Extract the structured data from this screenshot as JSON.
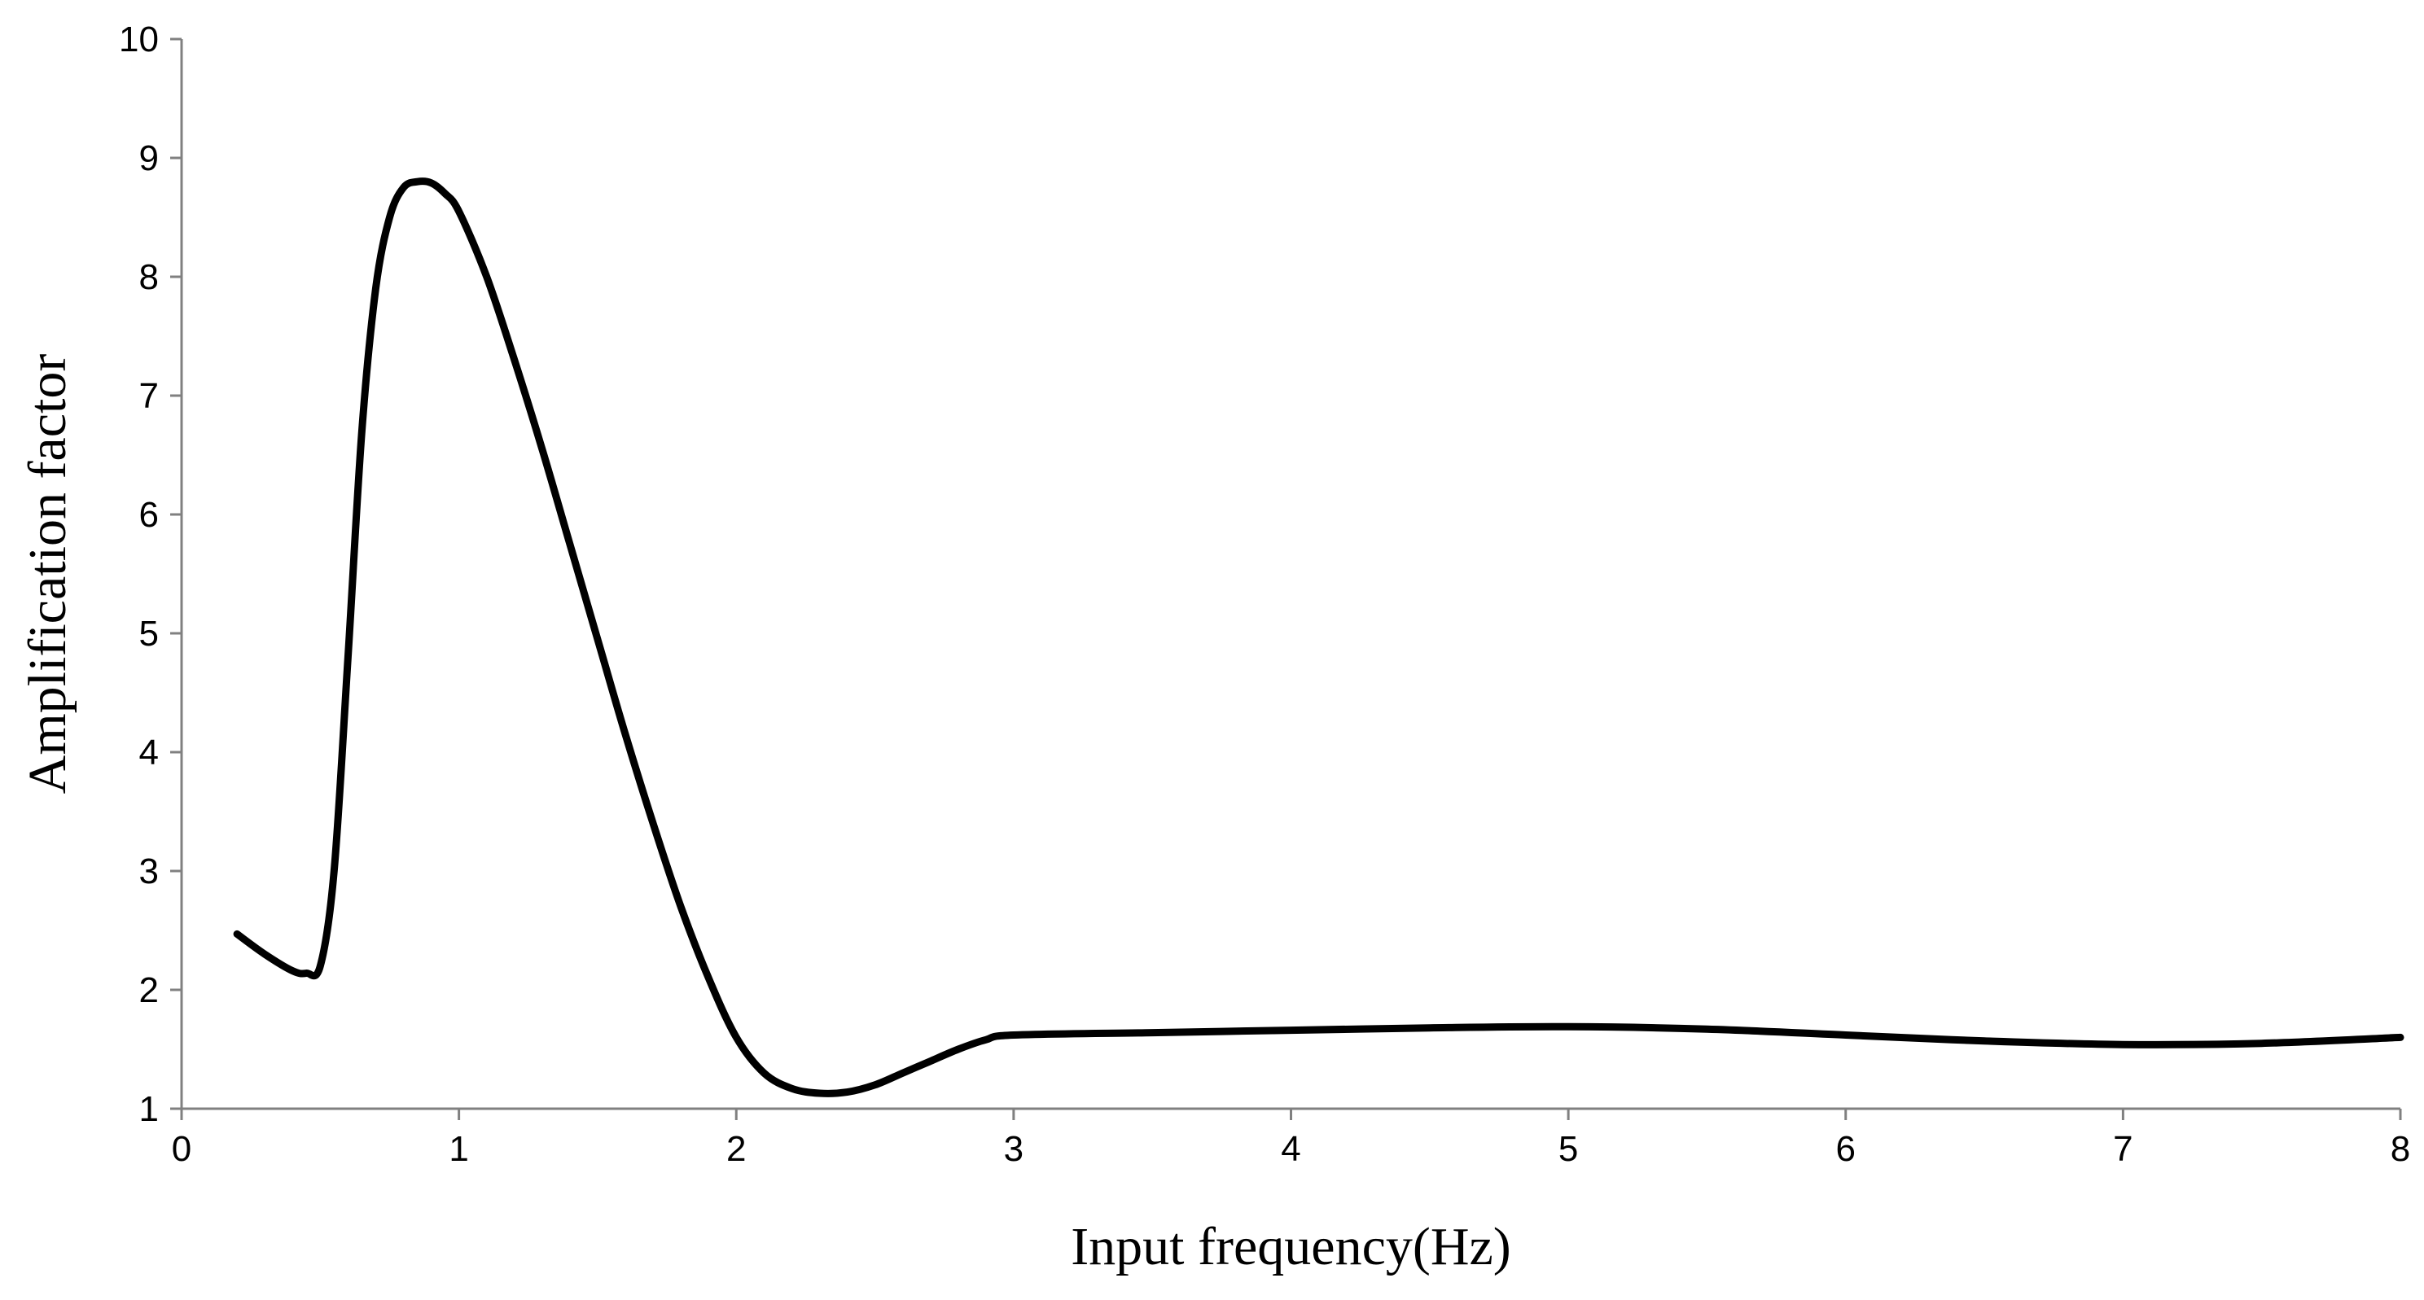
{
  "chart_data": {
    "type": "line",
    "title": "",
    "xlabel": "Input frequency(Hz)",
    "ylabel": "Amplification factor",
    "xlim": [
      0,
      8
    ],
    "ylim": [
      1,
      10
    ],
    "xticks": [
      "0",
      "1",
      "2",
      "3",
      "4",
      "5",
      "6",
      "7",
      "8"
    ],
    "yticks": [
      "1",
      "2",
      "3",
      "4",
      "5",
      "6",
      "7",
      "8",
      "9",
      "10"
    ],
    "grid": false,
    "legend": "none",
    "series": [
      {
        "color": "#000000",
        "x": [
          0.2,
          0.3,
          0.4,
          0.45,
          0.5,
          0.55,
          0.6,
          0.65,
          0.7,
          0.75,
          0.8,
          0.85,
          0.9,
          0.95,
          1.0,
          1.1,
          1.2,
          1.3,
          1.4,
          1.5,
          1.6,
          1.7,
          1.8,
          1.9,
          2.0,
          2.1,
          2.2,
          2.3,
          2.4,
          2.5,
          2.6,
          2.7,
          2.8,
          2.9,
          3.0,
          3.5,
          4.0,
          4.5,
          5.0,
          5.5,
          6.0,
          6.5,
          7.0,
          7.5,
          8.0
        ],
        "values": [
          2.47,
          2.3,
          2.16,
          2.14,
          2.2,
          3.0,
          4.8,
          6.7,
          7.9,
          8.5,
          8.75,
          8.8,
          8.79,
          8.7,
          8.55,
          8.0,
          7.3,
          6.55,
          5.75,
          4.95,
          4.15,
          3.4,
          2.7,
          2.1,
          1.6,
          1.3,
          1.17,
          1.13,
          1.14,
          1.2,
          1.3,
          1.4,
          1.5,
          1.58,
          1.62,
          1.64,
          1.66,
          1.68,
          1.69,
          1.67,
          1.62,
          1.57,
          1.54,
          1.55,
          1.6
        ]
      }
    ]
  }
}
